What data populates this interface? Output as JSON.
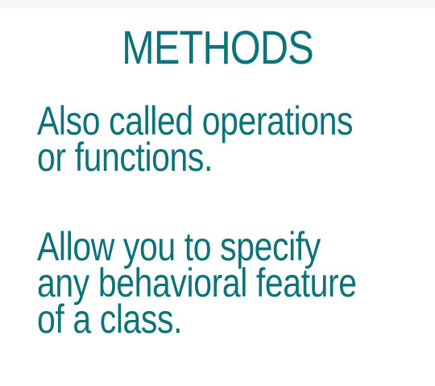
{
  "slide": {
    "title": "METHODS",
    "paragraphs": [
      {
        "lines": [
          "Also called operations",
          "or functions."
        ]
      },
      {
        "lines": [
          "Allow you to specify",
          "any behavioral feature",
          "of a class."
        ]
      }
    ]
  },
  "colors": {
    "text": "#0d7379",
    "background": "#ffffff"
  }
}
